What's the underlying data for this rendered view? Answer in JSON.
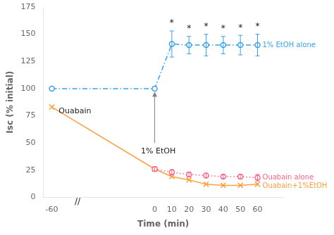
{
  "chart_data": {
    "type": "line",
    "xlabel": "Time (min)",
    "ylabel": "Isc (% initial)",
    "xlim": [
      -65,
      75
    ],
    "xticks": [
      -60,
      0,
      10,
      20,
      30,
      40,
      50,
      60
    ],
    "ylim": [
      0,
      175
    ],
    "yticks": [
      0,
      25,
      50,
      75,
      100,
      125,
      150,
      175
    ],
    "series": [
      {
        "name": "1% EtOH alone",
        "x": [
          -60,
          0,
          10,
          20,
          30,
          40,
          50,
          60
        ],
        "values": [
          100,
          100,
          141,
          140,
          140,
          140,
          140,
          140
        ],
        "errors": [
          null,
          null,
          12,
          8,
          10,
          8,
          9,
          10
        ],
        "line_style": "dashdot",
        "marker": "circle"
      },
      {
        "name": "Ouabain alone",
        "x": [
          0,
          10,
          20,
          30,
          40,
          50,
          60
        ],
        "values": [
          26,
          23,
          21,
          20,
          19,
          19,
          18
        ],
        "errors": [
          2,
          2.5,
          2,
          2,
          1.5,
          2,
          3
        ],
        "line_style": "dotted",
        "marker": "circle"
      },
      {
        "name": "Ouabain+1%EtOH",
        "x": [
          -60,
          0,
          10,
          20,
          30,
          40,
          50,
          60
        ],
        "values": [
          83,
          26,
          19,
          16,
          12,
          11,
          11,
          12
        ],
        "line_style": "solid",
        "marker": "x"
      }
    ],
    "annotations": [
      {
        "text": "*",
        "x": 10,
        "y": 156
      },
      {
        "text": "*",
        "x": 20,
        "y": 151
      },
      {
        "text": "*",
        "x": 30,
        "y": 153
      },
      {
        "text": "*",
        "x": 40,
        "y": 151
      },
      {
        "text": "*",
        "x": 50,
        "y": 152
      },
      {
        "text": "*",
        "x": 60,
        "y": 153
      },
      {
        "text": "1% EtOH",
        "x": -8,
        "y": 42
      },
      {
        "text": "Ouabain",
        "x": -56,
        "y": 79
      },
      {
        "text": "//",
        "x": -45,
        "y": -8
      }
    ],
    "arrows": [
      {
        "x": 0,
        "y_start": 50,
        "y_end": 97
      }
    ]
  }
}
